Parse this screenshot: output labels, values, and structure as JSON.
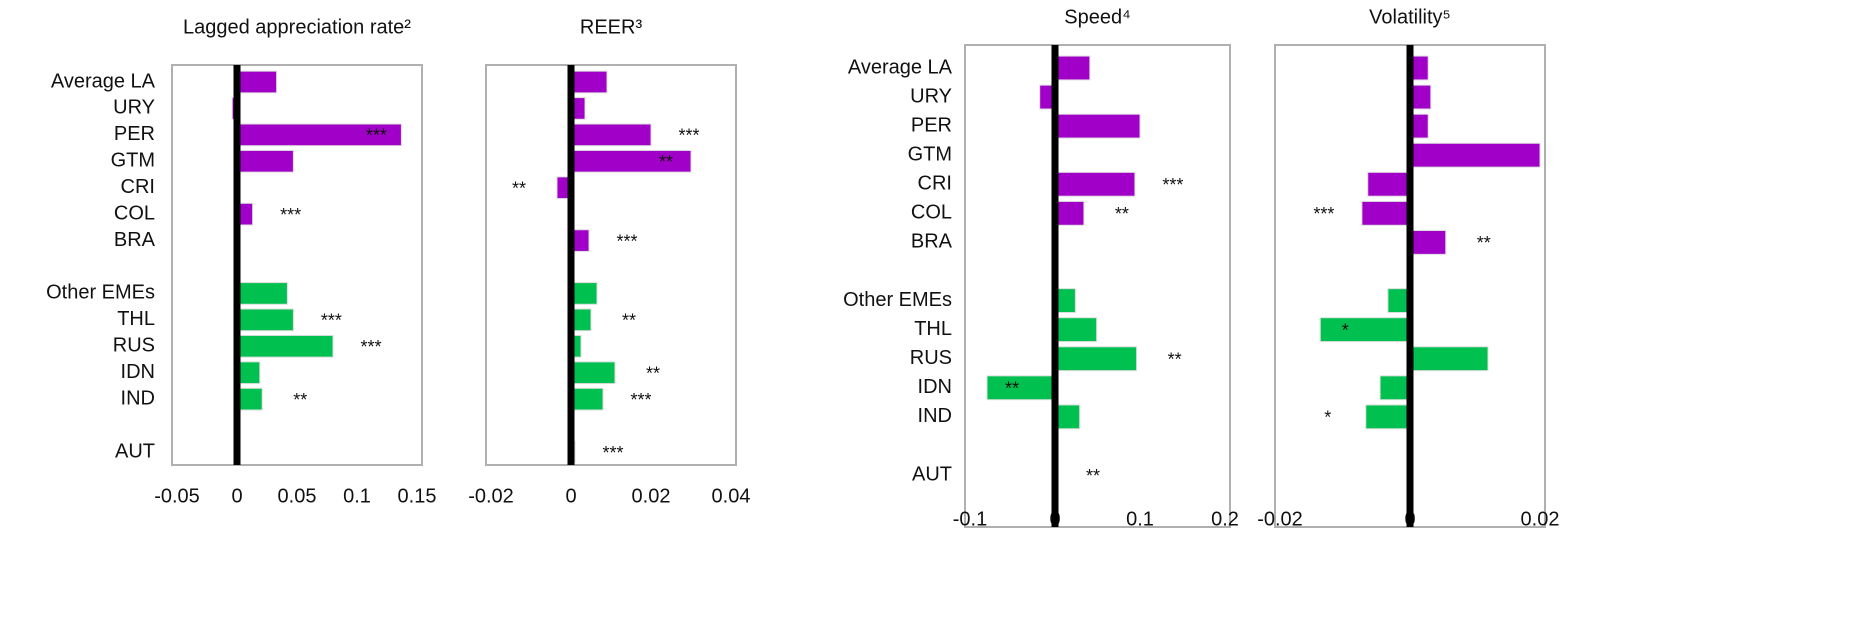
{
  "chart_data": [
    {
      "type": "barh",
      "title": "Lagged appreciation rate²",
      "categories": [
        "Average LA",
        "URY",
        "PER",
        "GTM",
        "CRI",
        "COL",
        "BRA",
        null,
        "Other EMEs",
        "THL",
        "RUS",
        "IDN",
        "IND",
        null,
        "AUT"
      ],
      "values": [
        0.033,
        -0.004,
        0.137,
        0.047,
        0,
        0.013,
        0,
        null,
        0.042,
        0.047,
        0.08,
        0.019,
        0.021,
        null,
        0
      ],
      "annotations": [
        null,
        null,
        "***",
        null,
        null,
        "***",
        null,
        null,
        null,
        "***",
        "***",
        null,
        "**",
        null,
        null
      ],
      "colors": [
        "#a000c8",
        "#a000c8",
        "#a000c8",
        "#a000c8",
        "#a000c8",
        "#a000c8",
        "#a000c8",
        null,
        "#00c050",
        "#00c050",
        "#00c050",
        "#00c050",
        "#00c050",
        null,
        "#00c050"
      ],
      "xlim": [
        -0.05,
        0.15
      ],
      "xticks": [
        -0.05,
        0,
        0.05,
        0.1,
        0.15
      ]
    },
    {
      "type": "barh",
      "title": "REER³",
      "values": [
        0.009,
        0.0035,
        0.02,
        0.03,
        -0.0035,
        0,
        0.0045,
        null,
        0.0065,
        0.005,
        0.0025,
        0.011,
        0.008,
        null,
        0.001
      ],
      "annotations": [
        null,
        null,
        "***",
        "**",
        "**",
        null,
        "***",
        null,
        null,
        "**",
        null,
        "**",
        "***",
        null,
        "***"
      ],
      "colors": [
        "#a000c8",
        "#a000c8",
        "#a000c8",
        "#a000c8",
        "#a000c8",
        "#a000c8",
        "#a000c8",
        null,
        "#00c050",
        "#00c050",
        "#00c050",
        "#00c050",
        "#00c050",
        null,
        "#00c050"
      ],
      "xlim": [
        -0.02,
        0.04
      ],
      "xticks": [
        -0.02,
        0,
        0.02,
        0.04
      ]
    },
    {
      "type": "barh",
      "title": "Speed⁴",
      "categories": [
        "Average LA",
        "URY",
        "PER",
        "GTM",
        "CRI",
        "COL",
        "BRA",
        null,
        "Other EMEs",
        "THL",
        "RUS",
        "IDN",
        "IND",
        null,
        "AUT"
      ],
      "values": [
        0.041,
        -0.018,
        0.1,
        0,
        0.094,
        0.034,
        0,
        null,
        0.024,
        0.049,
        0.096,
        -0.08,
        0.029,
        null,
        0
      ],
      "annotations": [
        null,
        null,
        null,
        null,
        "***",
        "**",
        null,
        null,
        null,
        null,
        "**",
        "**",
        null,
        null,
        "**"
      ],
      "colors": [
        "#a000c8",
        "#a000c8",
        "#a000c8",
        "#a000c8",
        "#a000c8",
        "#a000c8",
        "#a000c8",
        null,
        "#00c050",
        "#00c050",
        "#00c050",
        "#00c050",
        "#00c050",
        null,
        "#00c050"
      ],
      "xlim": [
        -0.1,
        0.2
      ],
      "xticks": [
        -0.1,
        0,
        0.1,
        0.2
      ]
    },
    {
      "type": "barh",
      "title": "Volatility⁵",
      "values": [
        0.0028,
        0.0032,
        0.0028,
        0.02,
        -0.0065,
        -0.0074,
        0.0055,
        null,
        -0.0034,
        -0.0138,
        0.012,
        -0.0046,
        -0.0068,
        null,
        0
      ],
      "annotations": [
        null,
        null,
        null,
        null,
        null,
        "***",
        "**",
        null,
        null,
        "*",
        null,
        null,
        "*",
        null,
        null
      ],
      "colors": [
        "#a000c8",
        "#a000c8",
        "#a000c8",
        "#a000c8",
        "#a000c8",
        "#a000c8",
        "#a000c8",
        null,
        "#00c050",
        "#00c050",
        "#00c050",
        "#00c050",
        "#00c050",
        null,
        "#00c050"
      ],
      "xlim": [
        -0.02,
        0.02
      ],
      "xticks": [
        -0.02,
        0,
        0.02
      ]
    }
  ]
}
